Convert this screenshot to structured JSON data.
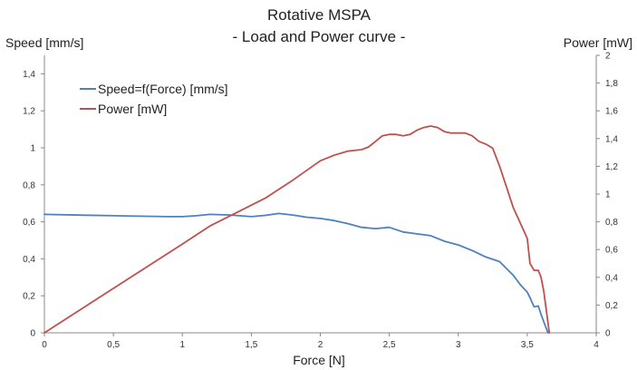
{
  "chart_data": {
    "type": "line",
    "title": "Rotative MSPA",
    "subtitle": "- Load and Power curve -",
    "xlabel": "Force [N]",
    "ylabel_left": "Speed [mm/s]",
    "ylabel_right": "Power [mW]",
    "xlim": [
      0,
      4
    ],
    "ylim_left": [
      0,
      1.5
    ],
    "ylim_right": [
      0,
      2
    ],
    "x_ticks": [
      0,
      0.5,
      1,
      1.5,
      2,
      2.5,
      3,
      3.5,
      4
    ],
    "x_tick_labels": [
      "0",
      "0,5",
      "1",
      "1,5",
      "2",
      "2,5",
      "3",
      "3,5",
      "4"
    ],
    "y_left_ticks": [
      0,
      0.2,
      0.4,
      0.6,
      0.8,
      1,
      1.2,
      1.4
    ],
    "y_left_tick_labels": [
      "0",
      "0,2",
      "0,4",
      "0,6",
      "0,8",
      "1",
      "1,2",
      "1,4"
    ],
    "y_right_ticks": [
      0,
      0.2,
      0.4,
      0.6,
      0.8,
      1,
      1.2,
      1.4,
      1.6,
      1.8,
      2
    ],
    "y_right_tick_labels": [
      "0",
      "0,2",
      "0,4",
      "0,6",
      "0,8",
      "1",
      "1,2",
      "1,4",
      "1,6",
      "1,8",
      "2"
    ],
    "grid": false,
    "legend_position": "top-left",
    "series": [
      {
        "name": "Speed=f(Force) [mm/s]",
        "axis": "left",
        "color": "#4F81BD",
        "x": [
          0,
          0.3,
          0.6,
          0.9,
          1.0,
          1.1,
          1.2,
          1.35,
          1.5,
          1.6,
          1.7,
          1.8,
          1.9,
          2.0,
          2.1,
          2.2,
          2.3,
          2.4,
          2.5,
          2.6,
          2.7,
          2.8,
          2.9,
          3.0,
          3.1,
          3.2,
          3.3,
          3.4,
          3.45,
          3.5,
          3.52,
          3.55,
          3.58,
          3.6,
          3.62,
          3.64,
          3.65
        ],
        "y": [
          0.64,
          0.636,
          0.632,
          0.628,
          0.628,
          0.633,
          0.64,
          0.637,
          0.628,
          0.635,
          0.645,
          0.637,
          0.625,
          0.618,
          0.607,
          0.59,
          0.57,
          0.563,
          0.57,
          0.545,
          0.535,
          0.525,
          0.495,
          0.475,
          0.445,
          0.41,
          0.385,
          0.31,
          0.26,
          0.22,
          0.19,
          0.14,
          0.145,
          0.1,
          0.06,
          0.02,
          0.0
        ]
      },
      {
        "name": "Power [mW]",
        "axis": "right",
        "color": "#C0504D",
        "x": [
          0,
          0.5,
          1.0,
          1.2,
          1.4,
          1.6,
          1.8,
          2.0,
          2.1,
          2.2,
          2.3,
          2.35,
          2.4,
          2.45,
          2.5,
          2.55,
          2.6,
          2.65,
          2.7,
          2.75,
          2.8,
          2.85,
          2.9,
          2.95,
          3.0,
          3.05,
          3.1,
          3.15,
          3.2,
          3.25,
          3.3,
          3.35,
          3.4,
          3.45,
          3.5,
          3.52,
          3.55,
          3.58,
          3.6,
          3.62,
          3.64,
          3.66
        ],
        "y": [
          0,
          0.32,
          0.64,
          0.77,
          0.87,
          0.97,
          1.1,
          1.24,
          1.28,
          1.31,
          1.32,
          1.34,
          1.38,
          1.42,
          1.43,
          1.43,
          1.42,
          1.43,
          1.46,
          1.48,
          1.49,
          1.48,
          1.45,
          1.44,
          1.44,
          1.44,
          1.42,
          1.38,
          1.36,
          1.33,
          1.2,
          1.05,
          0.9,
          0.79,
          0.68,
          0.5,
          0.45,
          0.45,
          0.4,
          0.3,
          0.15,
          0.0
        ]
      }
    ]
  }
}
